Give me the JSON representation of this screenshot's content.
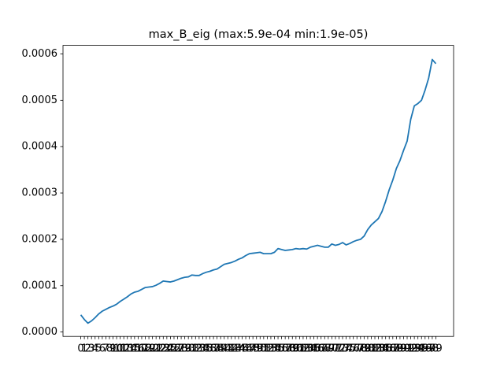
{
  "chart_data": {
    "type": "line",
    "title": "max_B_eig (max:5.9e-04 min:1.9e-05)",
    "categories": [
      "0",
      "1",
      "2",
      "3",
      "4",
      "5",
      "6",
      "7",
      "8",
      "9",
      "10",
      "11",
      "12",
      "13",
      "14",
      "15",
      "16",
      "17",
      "18",
      "19",
      "20",
      "21",
      "22",
      "23",
      "24",
      "25",
      "26",
      "27",
      "28",
      "29",
      "30",
      "31",
      "32",
      "33",
      "34",
      "35",
      "36",
      "37",
      "38",
      "39",
      "40",
      "41",
      "42",
      "43",
      "44",
      "45",
      "46",
      "47",
      "48",
      "49",
      "50",
      "51",
      "52",
      "53",
      "54",
      "55",
      "56",
      "57",
      "58",
      "59",
      "60",
      "61",
      "62",
      "63",
      "64",
      "65",
      "66",
      "67",
      "68",
      "69",
      "70",
      "71",
      "72",
      "73",
      "74",
      "75",
      "76",
      "77",
      "78",
      "79",
      "80",
      "81",
      "82",
      "83",
      "84",
      "85",
      "86",
      "87",
      "88",
      "89",
      "90",
      "91",
      "92",
      "93",
      "94",
      "95",
      "96",
      "97",
      "98",
      "99"
    ],
    "values": [
      3.7e-05,
      2.7e-05,
      1.9e-05,
      2.4e-05,
      3.1e-05,
      3.9e-05,
      4.5e-05,
      4.9e-05,
      5.3e-05,
      5.6e-05,
      6e-05,
      6.6e-05,
      7.1e-05,
      7.6e-05,
      8.2e-05,
      8.6e-05,
      8.8e-05,
      9.2e-05,
      9.6e-05,
      9.7e-05,
      9.8e-05,
      0.000101,
      0.000105,
      0.00011,
      0.000109,
      0.000108,
      0.00011,
      0.000113,
      0.000116,
      0.000118,
      0.000119,
      0.000123,
      0.000122,
      0.000122,
      0.000126,
      0.000129,
      0.000131,
      0.000134,
      0.000136,
      0.000141,
      0.000146,
      0.000148,
      0.00015,
      0.000153,
      0.000157,
      0.00016,
      0.000165,
      0.000169,
      0.00017,
      0.000171,
      0.000172,
      0.000169,
      0.000169,
      0.000169,
      0.000172,
      0.00018,
      0.000178,
      0.000176,
      0.000177,
      0.000178,
      0.00018,
      0.000179,
      0.00018,
      0.000179,
      0.000183,
      0.000185,
      0.000187,
      0.000185,
      0.000183,
      0.000183,
      0.00019,
      0.000187,
      0.000189,
      0.000193,
      0.000188,
      0.000191,
      0.000195,
      0.000198,
      0.0002,
      0.000207,
      0.000221,
      0.000231,
      0.000238,
      0.000245,
      0.00026,
      0.000282,
      0.000307,
      0.000328,
      0.000353,
      0.00037,
      0.000392,
      0.000412,
      0.000459,
      0.000488,
      0.000493,
      0.0005,
      0.000522,
      0.000548,
      0.000588,
      0.000579
    ],
    "color": "#1f77b4",
    "xlim": [
      -4.95,
      103.95
    ],
    "ylim": [
      -9.5e-06,
      0.0006185
    ],
    "yticks": [
      {
        "value": 0,
        "label": "0.0000"
      },
      {
        "value": 0.0001,
        "label": "0.0001"
      },
      {
        "value": 0.0002,
        "label": "0.0002"
      },
      {
        "value": 0.0003,
        "label": "0.0003"
      },
      {
        "value": 0.0004,
        "label": "0.0004"
      },
      {
        "value": 0.0005,
        "label": "0.0005"
      },
      {
        "value": 0.0006,
        "label": "0.0006"
      }
    ],
    "grid": false
  }
}
